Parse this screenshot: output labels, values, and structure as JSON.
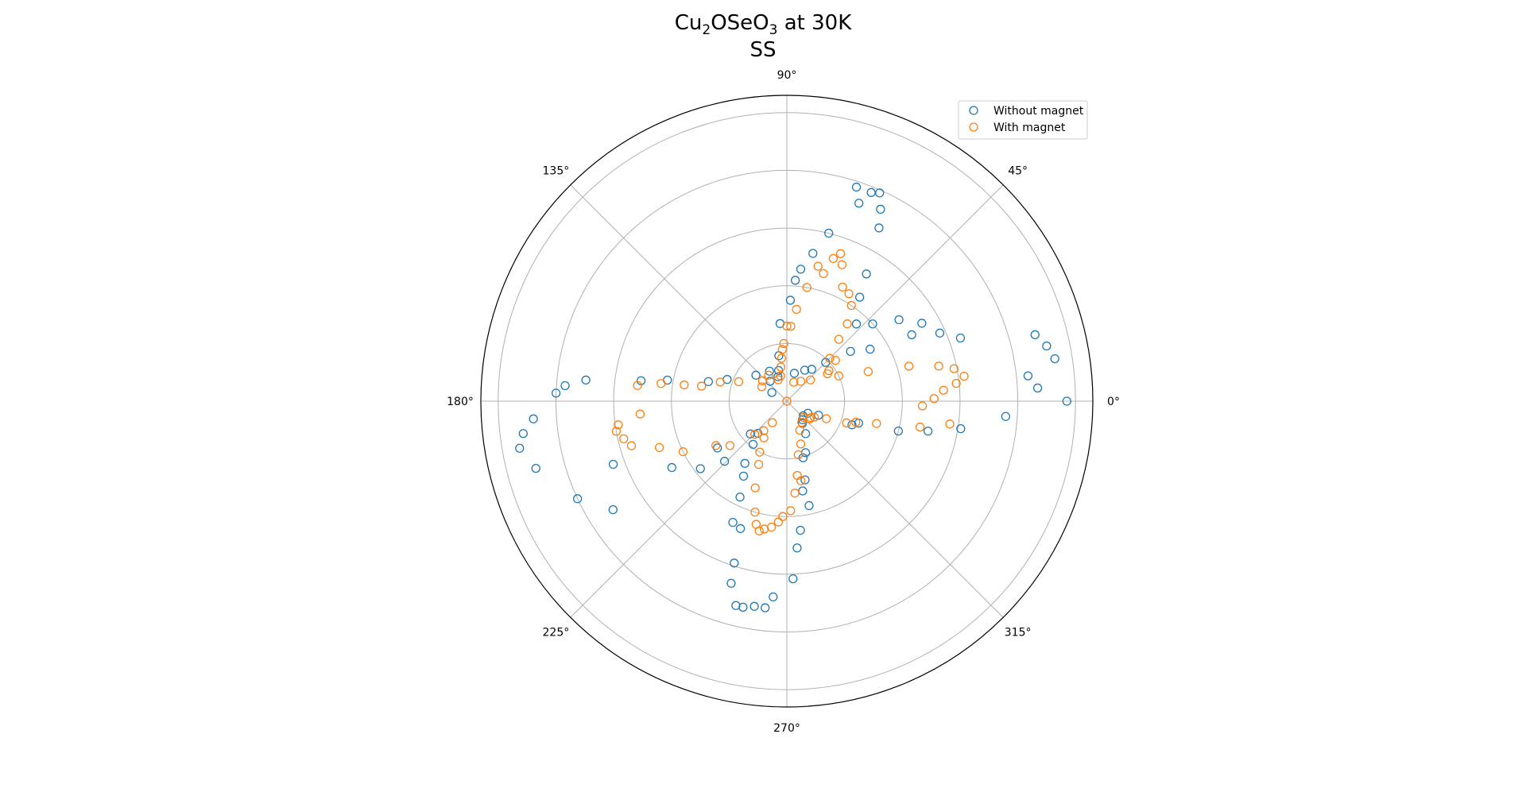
{
  "chart_data": {
    "type": "scatter",
    "projection": "polar",
    "title": {
      "pre": "Cu",
      "sub1": "2",
      "mid": "OSeO",
      "sub2": "3",
      "post": " at 30K",
      "line2": "SS"
    },
    "angle_ticks": [
      "0°",
      "45°",
      "90°",
      "135°",
      "180°",
      "225°",
      "270°",
      "315°"
    ],
    "r_ticks": [
      1,
      2,
      3,
      4,
      5
    ],
    "r_max": 5.3,
    "grid": true,
    "legend_position": "upper right",
    "series": [
      {
        "name": "Without magnet",
        "color": "#1f77b4",
        "points": [
          [
            0,
            4.85
          ],
          [
            3,
            4.35
          ],
          [
            6,
            4.2
          ],
          [
            9,
            4.7
          ],
          [
            12,
            4.6
          ],
          [
            15,
            4.45
          ],
          [
            20,
            3.2
          ],
          [
            24,
            2.9
          ],
          [
            28,
            2.45
          ],
          [
            32,
            1.7
          ],
          [
            38,
            1.4
          ],
          [
            45,
            0.95
          ],
          [
            52,
            0.7
          ],
          [
            60,
            0.62
          ],
          [
            75,
            0.5
          ],
          [
            30,
            2.7
          ],
          [
            36,
            2.4
          ],
          [
            42,
            2.0
          ],
          [
            48,
            1.8
          ],
          [
            55,
            2.2
          ],
          [
            58,
            2.6
          ],
          [
            62,
            3.4
          ],
          [
            64,
            3.7
          ],
          [
            66,
            3.95
          ],
          [
            68,
            3.9
          ],
          [
            70,
            3.65
          ],
          [
            72,
            3.9
          ],
          [
            76,
            3.0
          ],
          [
            80,
            2.6
          ],
          [
            84,
            2.3
          ],
          [
            86,
            2.1
          ],
          [
            88,
            1.75
          ],
          [
            95,
            1.35
          ],
          [
            100,
            0.8
          ],
          [
            105,
            0.55
          ],
          [
            110,
            0.45
          ],
          [
            120,
            0.6
          ],
          [
            130,
            0.45
          ],
          [
            140,
            0.7
          ],
          [
            150,
            0.3
          ],
          [
            160,
            1.1
          ],
          [
            166,
            1.4
          ],
          [
            170,
            2.1
          ],
          [
            172,
            2.55
          ],
          [
            174,
            3.5
          ],
          [
            176,
            3.85
          ],
          [
            178,
            4.0
          ],
          [
            184,
            4.4
          ],
          [
            187,
            4.6
          ],
          [
            190,
            4.7
          ],
          [
            195,
            4.5
          ],
          [
            200,
            3.2
          ],
          [
            210,
            2.3
          ],
          [
            212,
            3.55
          ],
          [
            218,
            1.9
          ],
          [
            224,
            1.5
          ],
          [
            205,
            4.0
          ],
          [
            214,
            1.45
          ],
          [
            222,
            0.85
          ],
          [
            228,
            0.75
          ],
          [
            232,
            0.95
          ],
          [
            236,
            1.3
          ],
          [
            240,
            1.5
          ],
          [
            244,
            1.85
          ],
          [
            246,
            2.3
          ],
          [
            250,
            2.35
          ],
          [
            252,
            2.95
          ],
          [
            253,
            3.3
          ],
          [
            256,
            3.65
          ],
          [
            258,
            3.65
          ],
          [
            261,
            3.6
          ],
          [
            264,
            3.6
          ],
          [
            266,
            3.4
          ],
          [
            272,
            3.08
          ],
          [
            274,
            2.55
          ],
          [
            276,
            2.25
          ],
          [
            280,
            1.58
          ],
          [
            282,
            1.85
          ],
          [
            283,
            1.4
          ],
          [
            286,
            1.02
          ],
          [
            290,
            0.95
          ],
          [
            300,
            0.65
          ],
          [
            305,
            0.47
          ],
          [
            310,
            0.42
          ],
          [
            318,
            0.38
          ],
          [
            330,
            0.42
          ],
          [
            336,
            0.6
          ],
          [
            340,
            1.2
          ],
          [
            343,
            1.3
          ],
          [
            345,
            2.0
          ],
          [
            348,
            2.5
          ],
          [
            351,
            3.05
          ],
          [
            356,
            3.8
          ]
        ]
      },
      {
        "name": "With magnet",
        "color": "#ff7f0e",
        "points": [
          [
            1,
            2.55
          ],
          [
            4,
            2.72
          ],
          [
            6,
            2.95
          ],
          [
            8,
            3.1
          ],
          [
            11,
            2.95
          ],
          [
            13,
            2.7
          ],
          [
            16,
            2.2
          ],
          [
            20,
            1.5
          ],
          [
            26,
            1.0
          ],
          [
            34,
            0.85
          ],
          [
            42,
            0.55
          ],
          [
            55,
            0.42
          ],
          [
            70,
            0.35
          ],
          [
            36,
            0.9
          ],
          [
            40,
            1.1
          ],
          [
            45,
            1.05
          ],
          [
            50,
            1.4
          ],
          [
            52,
            1.7
          ],
          [
            56,
            2.0
          ],
          [
            60,
            2.15
          ],
          [
            64,
            2.2
          ],
          [
            68,
            2.55
          ],
          [
            70,
            2.72
          ],
          [
            72,
            2.6
          ],
          [
            74,
            2.3
          ],
          [
            77,
            2.4
          ],
          [
            80,
            2.0
          ],
          [
            84,
            1.6
          ],
          [
            87,
            1.3
          ],
          [
            90,
            1.3
          ],
          [
            93,
            1.0
          ],
          [
            95,
            0.9
          ],
          [
            97,
            0.75
          ],
          [
            100,
            0.6
          ],
          [
            104,
            0.45
          ],
          [
            112,
            0.4
          ],
          [
            125,
            0.55
          ],
          [
            140,
            0.55
          ],
          [
            150,
            0.5
          ],
          [
            158,
            0.9
          ],
          [
            164,
            1.2
          ],
          [
            170,
            1.5
          ],
          [
            171,
            1.8
          ],
          [
            172,
            2.2
          ],
          [
            174,
            2.6
          ],
          [
            180,
            0.0
          ],
          [
            185,
            2.55
          ],
          [
            188,
            2.95
          ],
          [
            190,
            3.0
          ],
          [
            193,
            2.9
          ],
          [
            196,
            2.8
          ],
          [
            200,
            2.35
          ],
          [
            206,
            2.0
          ],
          [
            212,
            1.45
          ],
          [
            218,
            1.25
          ],
          [
            226,
            0.8
          ],
          [
            232,
            0.65
          ],
          [
            236,
            0.45
          ],
          [
            238,
            0.75
          ],
          [
            242,
            1.0
          ],
          [
            246,
            1.2
          ],
          [
            250,
            1.6
          ],
          [
            254,
            2.0
          ],
          [
            256,
            2.2
          ],
          [
            258,
            2.3
          ],
          [
            260,
            2.25
          ],
          [
            263,
            2.2
          ],
          [
            266,
            2.1
          ],
          [
            268,
            2.0
          ],
          [
            272,
            1.9
          ],
          [
            275,
            1.6
          ],
          [
            278,
            1.3
          ],
          [
            280,
            1.4
          ],
          [
            282,
            0.95
          ],
          [
            288,
            0.78
          ],
          [
            294,
            0.55
          ],
          [
            305,
            0.45
          ],
          [
            315,
            0.4
          ],
          [
            322,
            0.5
          ],
          [
            325,
            0.5
          ],
          [
            330,
            0.55
          ],
          [
            336,
            0.75
          ],
          [
            340,
            1.1
          ],
          [
            343,
            1.25
          ],
          [
            346,
            1.6
          ],
          [
            349,
            2.35
          ],
          [
            352,
            2.85
          ],
          [
            358,
            2.35
          ]
        ]
      }
    ]
  }
}
